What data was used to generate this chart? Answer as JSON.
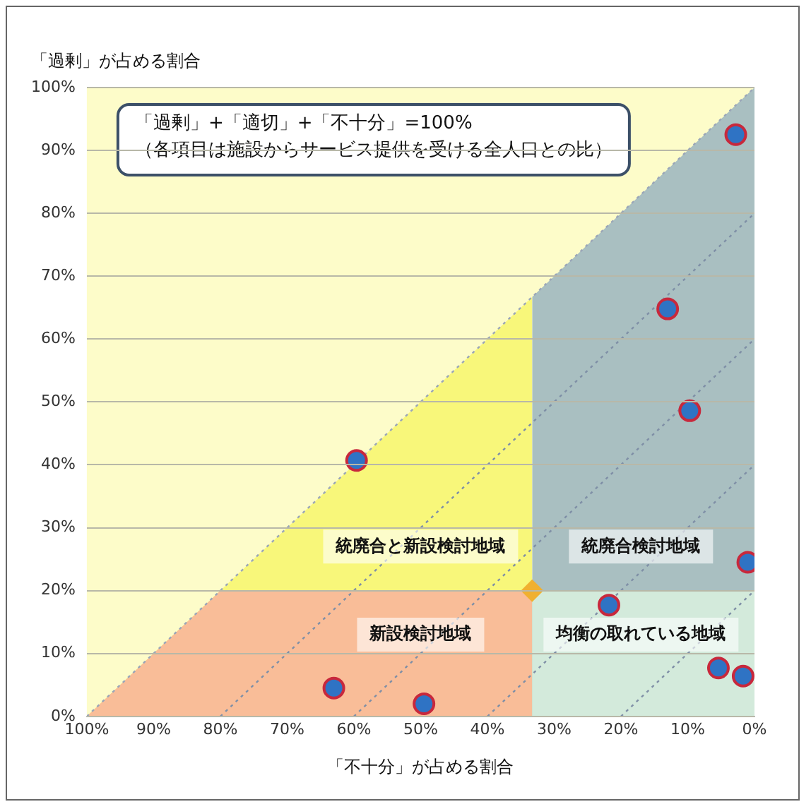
{
  "chart_data": {
    "type": "scatter",
    "xlabel": "「不十分」が占める割合",
    "ylabel": "「過剰」が占める割合",
    "xlim": [
      100,
      0
    ],
    "xticks": [
      {
        "value": 100,
        "label": "100%"
      },
      {
        "value": 90,
        "label": "90%"
      },
      {
        "value": 80,
        "label": "80%"
      },
      {
        "value": 70,
        "label": "70%"
      },
      {
        "value": 60,
        "label": "60%"
      },
      {
        "value": 50,
        "label": "50%"
      },
      {
        "value": 40,
        "label": "40%"
      },
      {
        "value": 30,
        "label": "30%"
      },
      {
        "value": 20,
        "label": "20%"
      },
      {
        "value": 10,
        "label": "10%"
      },
      {
        "value": 0,
        "label": "0%"
      }
    ],
    "ylim": [
      0,
      100
    ],
    "yticks": [
      {
        "value": 0,
        "label": "0%"
      },
      {
        "value": 10,
        "label": "10%"
      },
      {
        "value": 20,
        "label": "20%"
      },
      {
        "value": 30,
        "label": "30%"
      },
      {
        "value": 40,
        "label": "40%"
      },
      {
        "value": 50,
        "label": "50%"
      },
      {
        "value": 60,
        "label": "60%"
      },
      {
        "value": 70,
        "label": "70%"
      },
      {
        "value": 80,
        "label": "80%"
      },
      {
        "value": 90,
        "label": "90%"
      },
      {
        "value": 100,
        "label": "100%"
      }
    ],
    "grid": "y",
    "legend": false,
    "series": [
      {
        "type": "area",
        "color": "#f8f77a",
        "x": [
          100,
          33.3
        ],
        "values": [
          0,
          66.7
        ]
      },
      {
        "type": "area",
        "color": "#a9bfc1",
        "x": [
          33.3,
          0
        ],
        "values": [
          66.7,
          100
        ]
      },
      {
        "type": "area",
        "color": "#f9bd98",
        "x": [
          100,
          80,
          33.3
        ],
        "values": [
          0,
          20,
          20
        ]
      },
      {
        "type": "area",
        "color": "#d3eadb",
        "x": [
          33.3,
          0
        ],
        "values": [
          20,
          20
        ]
      },
      {
        "type": "line",
        "color": "#7f8fa6",
        "line_style": "dotted",
        "marker": "none",
        "x": [
          80,
          0
        ],
        "values": [
          0,
          80
        ]
      },
      {
        "type": "line",
        "color": "#7f8fa6",
        "line_style": "dotted",
        "marker": "none",
        "x": [
          60,
          0
        ],
        "values": [
          0,
          60
        ]
      },
      {
        "type": "line",
        "color": "#7f8fa6",
        "line_style": "dotted",
        "marker": "none",
        "x": [
          40,
          0
        ],
        "values": [
          0,
          40
        ]
      },
      {
        "type": "line",
        "color": "#7f8fa6",
        "line_style": "dotted",
        "marker": "none",
        "x": [
          20,
          0
        ],
        "values": [
          0,
          20
        ]
      },
      {
        "type": "line",
        "color": "#9aa6b8",
        "line_style": "dotted",
        "marker": "none",
        "x": [
          100,
          0
        ],
        "values": [
          0,
          100
        ]
      },
      {
        "color": "#f0b030",
        "marker": "diamond",
        "x": [
          33.3
        ],
        "values": [
          20
        ]
      },
      {
        "color": "#2f73c4",
        "marker": "circle",
        "x": [
          2.8,
          13,
          9.7,
          59.6,
          1,
          21.8,
          5.4,
          1.7,
          63,
          49.5
        ],
        "values": [
          92.5,
          64.8,
          48.6,
          40.7,
          24.5,
          17.7,
          7.7,
          6.4,
          4.5,
          2
        ]
      }
    ],
    "annotations": [
      "「過剰」+「適切」+「不十分」=100%\n（各項目は施設からサービス提供を受ける全人口との比）",
      "統廃合と新設検討地域",
      "統廃合検討地域",
      "新設検討地域",
      "均衡の取れている地域"
    ]
  }
}
